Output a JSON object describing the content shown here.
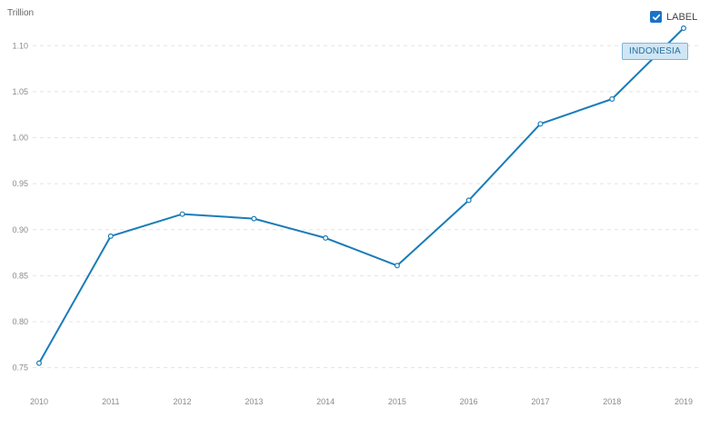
{
  "unit_label": "Trillion",
  "label_toggle": {
    "text": "LABEL",
    "checked": true
  },
  "colors": {
    "series": "#1a7cb8",
    "grid": "#e3e3e3",
    "tag_background": "#cfe6f5",
    "checkbox": "#1a73c9"
  },
  "chart_data": {
    "type": "line",
    "title": "",
    "xlabel": "",
    "ylabel": "Trillion",
    "x": [
      "2010",
      "2011",
      "2012",
      "2013",
      "2014",
      "2015",
      "2016",
      "2017",
      "2018",
      "2019"
    ],
    "yticks": [
      "0.75",
      "0.80",
      "0.85",
      "0.90",
      "0.95",
      "1.00",
      "1.05",
      "1.10"
    ],
    "ylim": [
      0.725,
      1.12
    ],
    "grid": true,
    "series": [
      {
        "name": "INDONESIA",
        "values": [
          0.755,
          0.893,
          0.917,
          0.912,
          0.891,
          0.861,
          0.932,
          1.015,
          1.042,
          1.119
        ]
      }
    ]
  }
}
